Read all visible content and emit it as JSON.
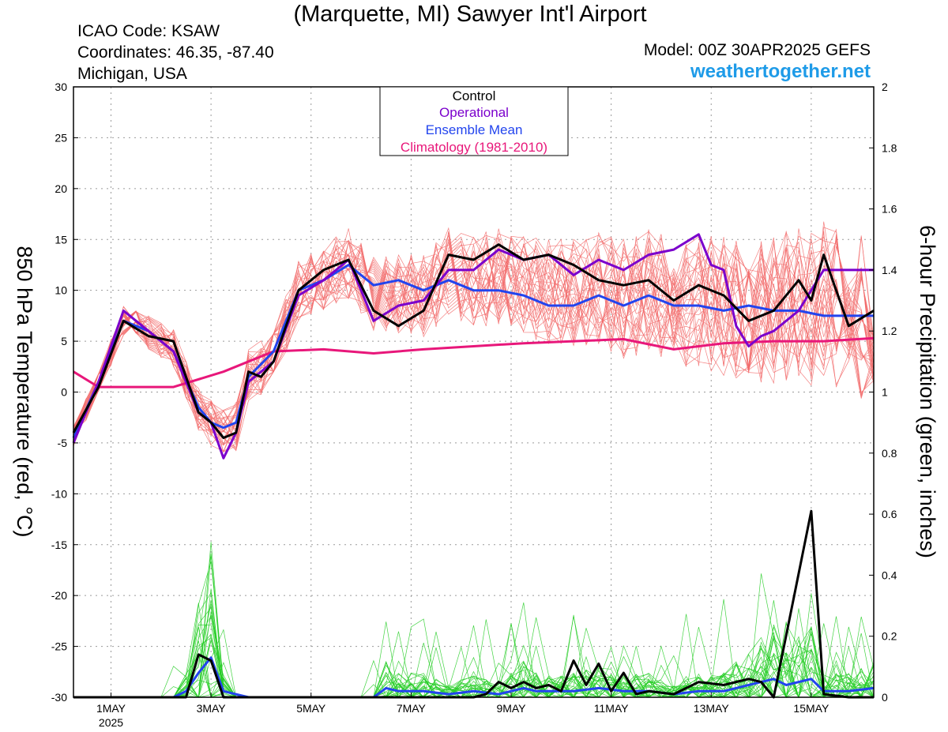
{
  "header": {
    "title": "(Marquette, MI) Sawyer Int'l Airport",
    "icao": "ICAO Code: KSAW",
    "coords": "Coordinates: 46.35, -87.40",
    "region": "Michigan, USA",
    "model": "Model: 00Z 30APR2025 GEFS",
    "site": "weathertogether.net"
  },
  "colors": {
    "control": "#000000",
    "operational": "#7b00cc",
    "ensemble_mean": "#2244ee",
    "climatology": "#e8177a",
    "members_temp": "#f26a6a",
    "members_precip": "#22cc22",
    "site": "#1e9be8"
  },
  "chart_data": {
    "type": "line",
    "x_unit": "days",
    "x_range": [
      0,
      16
    ],
    "x_ticks": [
      {
        "x": 0.75,
        "label": "1MAY",
        "sublabel": "2025"
      },
      {
        "x": 2.75,
        "label": "3MAY"
      },
      {
        "x": 4.75,
        "label": "5MAY"
      },
      {
        "x": 6.75,
        "label": "7MAY"
      },
      {
        "x": 8.75,
        "label": "9MAY"
      },
      {
        "x": 10.75,
        "label": "11MAY"
      },
      {
        "x": 12.75,
        "label": "13MAY"
      },
      {
        "x": 14.75,
        "label": "15MAY"
      }
    ],
    "y_left": {
      "label": "850 hPa Temperature (red, °C)",
      "range": [
        -30,
        30
      ],
      "ticks": [
        -30,
        -25,
        -20,
        -15,
        -10,
        -5,
        0,
        5,
        10,
        15,
        20,
        25,
        30
      ]
    },
    "y_right": {
      "label": "6-hour Precipitation (green, inches)",
      "range": [
        0,
        2
      ],
      "ticks": [
        "0",
        "0.2",
        "0.4",
        "0.6",
        "0.8",
        "1",
        "1.2",
        "1.4",
        "1.6",
        "1.8",
        "2"
      ]
    },
    "grid": true,
    "legend": {
      "position": "top-center",
      "entries": [
        "Control",
        "Operational",
        "Ensemble Mean",
        "Climatology (1981-2010)"
      ]
    },
    "series": [
      {
        "name": "Control",
        "axis": "left",
        "points": [
          [
            0,
            -4
          ],
          [
            0.5,
            0.5
          ],
          [
            1,
            7
          ],
          [
            1.5,
            5.5
          ],
          [
            2,
            5
          ],
          [
            2.5,
            -2
          ],
          [
            2.75,
            -3
          ],
          [
            3,
            -4.5
          ],
          [
            3.25,
            -4
          ],
          [
            3.5,
            2
          ],
          [
            3.75,
            1.5
          ],
          [
            4,
            3
          ],
          [
            4.5,
            10
          ],
          [
            5,
            12
          ],
          [
            5.5,
            13
          ],
          [
            6,
            8
          ],
          [
            6.5,
            6.5
          ],
          [
            7,
            8
          ],
          [
            7.5,
            13.5
          ],
          [
            8,
            13
          ],
          [
            8.5,
            14.5
          ],
          [
            9,
            13
          ],
          [
            9.5,
            13.5
          ],
          [
            10,
            12.5
          ],
          [
            10.5,
            11
          ],
          [
            11,
            10.5
          ],
          [
            11.5,
            11
          ],
          [
            12,
            9
          ],
          [
            12.5,
            10.5
          ],
          [
            13,
            9.5
          ],
          [
            13.5,
            7
          ],
          [
            14,
            8
          ],
          [
            14.5,
            11
          ],
          [
            14.75,
            9
          ],
          [
            15,
            13.5
          ],
          [
            15.5,
            6.5
          ],
          [
            16,
            8
          ]
        ]
      },
      {
        "name": "Operational",
        "axis": "left",
        "points": [
          [
            0,
            -5
          ],
          [
            0.5,
            1
          ],
          [
            1,
            8
          ],
          [
            1.5,
            6
          ],
          [
            2,
            4
          ],
          [
            2.5,
            -2
          ],
          [
            2.75,
            -3
          ],
          [
            3,
            -6.5
          ],
          [
            3.25,
            -4
          ],
          [
            3.5,
            1
          ],
          [
            4,
            3
          ],
          [
            4.5,
            9.5
          ],
          [
            5,
            11
          ],
          [
            5.5,
            13
          ],
          [
            6,
            7
          ],
          [
            6.5,
            8.5
          ],
          [
            7,
            9
          ],
          [
            7.5,
            12
          ],
          [
            8,
            12
          ],
          [
            8.5,
            14
          ],
          [
            9,
            13
          ],
          [
            9.5,
            13.5
          ],
          [
            10,
            11.5
          ],
          [
            10.5,
            13
          ],
          [
            11,
            12
          ],
          [
            11.5,
            13.5
          ],
          [
            12,
            14
          ],
          [
            12.5,
            15.5
          ],
          [
            12.75,
            12.5
          ],
          [
            13,
            12
          ],
          [
            13.25,
            6.5
          ],
          [
            13.5,
            4.5
          ],
          [
            13.75,
            5.5
          ],
          [
            14,
            6
          ],
          [
            14.5,
            8
          ],
          [
            15,
            12
          ],
          [
            15.5,
            12
          ],
          [
            16,
            12
          ]
        ]
      },
      {
        "name": "Ensemble Mean",
        "axis": "left",
        "points": [
          [
            0,
            -4.5
          ],
          [
            0.5,
            1
          ],
          [
            1,
            7
          ],
          [
            1.5,
            6
          ],
          [
            2,
            4
          ],
          [
            2.5,
            -1.5
          ],
          [
            2.75,
            -3
          ],
          [
            3,
            -3.5
          ],
          [
            3.25,
            -3
          ],
          [
            3.5,
            1.5
          ],
          [
            4,
            4
          ],
          [
            4.5,
            10
          ],
          [
            5,
            11
          ],
          [
            5.5,
            12.5
          ],
          [
            6,
            10.5
          ],
          [
            6.5,
            11
          ],
          [
            7,
            10
          ],
          [
            7.5,
            11
          ],
          [
            8,
            10
          ],
          [
            8.5,
            10
          ],
          [
            9,
            9.5
          ],
          [
            9.5,
            8.5
          ],
          [
            10,
            8.5
          ],
          [
            10.5,
            9.5
          ],
          [
            11,
            8.5
          ],
          [
            11.5,
            9.5
          ],
          [
            12,
            8.5
          ],
          [
            12.5,
            8.5
          ],
          [
            13,
            8
          ],
          [
            13.5,
            8.5
          ],
          [
            14,
            8
          ],
          [
            14.5,
            8
          ],
          [
            15,
            7.5
          ],
          [
            15.5,
            7.5
          ],
          [
            16,
            7.5
          ]
        ]
      },
      {
        "name": "Climatology (1981-2010)",
        "axis": "left",
        "points": [
          [
            0,
            2
          ],
          [
            0.5,
            0.5
          ],
          [
            1,
            0.5
          ],
          [
            2,
            0.5
          ],
          [
            3,
            2
          ],
          [
            3.5,
            3
          ],
          [
            4,
            4
          ],
          [
            5,
            4.2
          ],
          [
            6,
            3.8
          ],
          [
            7,
            4.2
          ],
          [
            8,
            4.5
          ],
          [
            9,
            4.8
          ],
          [
            10,
            5
          ],
          [
            11,
            5.2
          ],
          [
            12,
            4.2
          ],
          [
            13,
            4.8
          ],
          [
            14,
            5
          ],
          [
            15,
            5
          ],
          [
            16,
            5.3
          ]
        ]
      },
      {
        "name": "Control",
        "axis": "right",
        "points": [
          [
            0,
            0
          ],
          [
            1,
            0
          ],
          [
            2,
            0
          ],
          [
            2.25,
            0
          ],
          [
            2.5,
            0.14
          ],
          [
            2.75,
            0.12
          ],
          [
            3,
            0
          ],
          [
            4,
            0
          ],
          [
            5,
            0
          ],
          [
            6,
            0
          ],
          [
            7,
            0
          ],
          [
            8,
            0
          ],
          [
            8.25,
            0.01
          ],
          [
            8.5,
            0.05
          ],
          [
            8.75,
            0.03
          ],
          [
            9,
            0.05
          ],
          [
            9.25,
            0.03
          ],
          [
            9.5,
            0.04
          ],
          [
            9.75,
            0.02
          ],
          [
            10,
            0.12
          ],
          [
            10.25,
            0.04
          ],
          [
            10.5,
            0.11
          ],
          [
            10.75,
            0.02
          ],
          [
            11,
            0.08
          ],
          [
            11.25,
            0.01
          ],
          [
            11.5,
            0.02
          ],
          [
            12,
            0.01
          ],
          [
            12.5,
            0.05
          ],
          [
            13,
            0.04
          ],
          [
            13.5,
            0.06
          ],
          [
            13.75,
            0.05
          ],
          [
            14,
            0
          ],
          [
            14.75,
            0.61
          ],
          [
            15,
            0.01
          ],
          [
            15.5,
            0
          ],
          [
            16,
            0
          ]
        ]
      },
      {
        "name": "Ensemble Mean",
        "axis": "right",
        "points": [
          [
            0,
            0
          ],
          [
            1,
            0
          ],
          [
            2,
            0
          ],
          [
            2.25,
            0.02
          ],
          [
            2.5,
            0.08
          ],
          [
            2.75,
            0.13
          ],
          [
            3,
            0.02
          ],
          [
            3.5,
            0
          ],
          [
            5,
            0
          ],
          [
            6,
            0
          ],
          [
            6.25,
            0.03
          ],
          [
            6.5,
            0.02
          ],
          [
            7,
            0.02
          ],
          [
            7.5,
            0.01
          ],
          [
            8,
            0.02
          ],
          [
            8.5,
            0.01
          ],
          [
            9,
            0.03
          ],
          [
            9.25,
            0.02
          ],
          [
            9.5,
            0.02
          ],
          [
            10,
            0.02
          ],
          [
            10.5,
            0.03
          ],
          [
            11,
            0.02
          ],
          [
            11.5,
            0.02
          ],
          [
            12,
            0.01
          ],
          [
            12.5,
            0.02
          ],
          [
            13,
            0.02
          ],
          [
            13.5,
            0.04
          ],
          [
            14,
            0.06
          ],
          [
            14.25,
            0.04
          ],
          [
            14.75,
            0.06
          ],
          [
            15,
            0.02
          ],
          [
            15.5,
            0.02
          ],
          [
            16,
            0.03
          ]
        ]
      }
    ]
  }
}
